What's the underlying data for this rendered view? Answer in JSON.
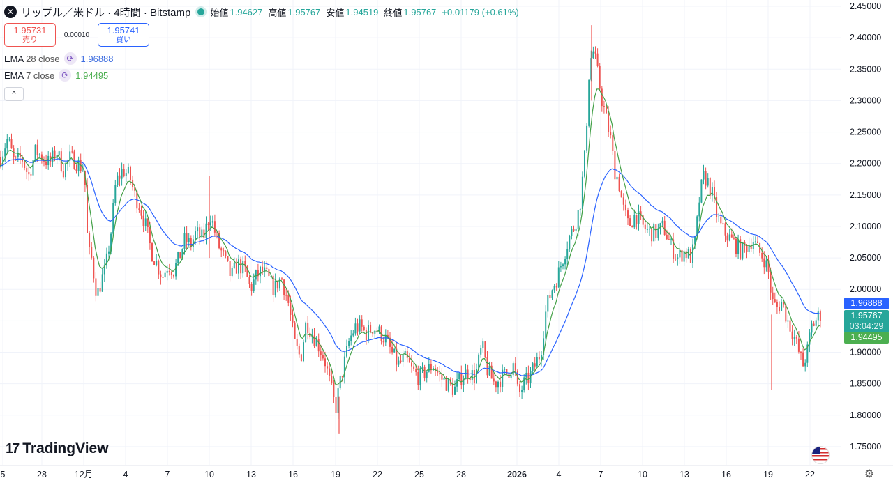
{
  "header": {
    "symbol_icon": "close-x-icon",
    "title": "リップル／米ドル · 4時間 · Bitstamp",
    "open_label": "始値",
    "open_value": "1.94627",
    "high_label": "高値",
    "high_value": "1.95767",
    "low_label": "安値",
    "low_value": "1.94519",
    "close_label": "終値",
    "close_value": "1.95767",
    "change": "+0.01179 (+0.61%)"
  },
  "trade": {
    "sell_price": "1.95731",
    "sell_label": "売り",
    "spread": "0.00010",
    "buy_price": "1.95741",
    "buy_label": "買い"
  },
  "indicators": [
    {
      "name": "EMA",
      "params": "28 close",
      "value": "1.96888",
      "color": "#2962ff",
      "value_color": "#3d6de0"
    },
    {
      "name": "EMA",
      "params": "7 close",
      "value": "1.94495",
      "color": "#43a047",
      "value_color": "#4caf50"
    }
  ],
  "price_labels": {
    "ema28": "1.96888",
    "last": "1.95767",
    "countdown": "03:04:29",
    "ema7": "1.94495"
  },
  "logo_text": "TradingView",
  "colors": {
    "up": "#26a69a",
    "down": "#ef5350",
    "grid": "#f0f3fa",
    "ema28": "#2962ff",
    "ema7": "#43a047"
  },
  "chart_data": {
    "type": "candlestick",
    "ylim": [
      1.72,
      2.46
    ],
    "yticks": [
      "2.45000",
      "2.40000",
      "2.35000",
      "2.30000",
      "2.25000",
      "2.20000",
      "2.15000",
      "2.10000",
      "2.05000",
      "2.00000",
      "1.95000",
      "1.90000",
      "1.85000",
      "1.80000",
      "1.75000"
    ],
    "xticks": [
      "5",
      "28",
      "12月",
      "4",
      "7",
      "10",
      "13",
      "16",
      "19",
      "22",
      "25",
      "28",
      "2026",
      "4",
      "7",
      "10",
      "13",
      "16",
      "19",
      "22"
    ],
    "close_path": [
      [
        0,
        2.21
      ],
      [
        10,
        2.24
      ],
      [
        20,
        2.2
      ],
      [
        30,
        2.21
      ],
      [
        40,
        2.18
      ],
      [
        50,
        2.22
      ],
      [
        60,
        2.21
      ],
      [
        70,
        2.2
      ],
      [
        80,
        2.22
      ],
      [
        90,
        2.19
      ],
      [
        100,
        2.21
      ],
      [
        110,
        2.2
      ],
      [
        120,
        2.19
      ],
      [
        125,
        2.06
      ],
      [
        130,
        2.05
      ],
      [
        138,
        1.99
      ],
      [
        146,
        2.02
      ],
      [
        150,
        2.03
      ],
      [
        158,
        2.09
      ],
      [
        165,
        2.17
      ],
      [
        175,
        2.19
      ],
      [
        185,
        2.18
      ],
      [
        192,
        2.15
      ],
      [
        200,
        2.13
      ],
      [
        208,
        2.1
      ],
      [
        216,
        2.06
      ],
      [
        224,
        2.04
      ],
      [
        232,
        2.02
      ],
      [
        240,
        2.04
      ],
      [
        248,
        2.03
      ],
      [
        256,
        2.05
      ],
      [
        264,
        2.08
      ],
      [
        272,
        2.07
      ],
      [
        280,
        2.09
      ],
      [
        290,
        2.08
      ],
      [
        300,
        2.12
      ],
      [
        305,
        2.1
      ],
      [
        312,
        2.07
      ],
      [
        320,
        2.05
      ],
      [
        330,
        2.02
      ],
      [
        340,
        2.04
      ],
      [
        350,
        2.03
      ],
      [
        358,
        2.0
      ],
      [
        366,
        2.02
      ],
      [
        374,
        2.03
      ],
      [
        382,
        2.02
      ],
      [
        392,
        2.0
      ],
      [
        402,
        2.02
      ],
      [
        412,
        1.98
      ],
      [
        422,
        1.91
      ],
      [
        430,
        1.89
      ],
      [
        438,
        1.95
      ],
      [
        446,
        1.93
      ],
      [
        456,
        1.91
      ],
      [
        464,
        1.89
      ],
      [
        472,
        1.85
      ],
      [
        480,
        1.81
      ],
      [
        486,
        1.85
      ],
      [
        492,
        1.88
      ],
      [
        500,
        1.92
      ],
      [
        508,
        1.94
      ],
      [
        516,
        1.94
      ],
      [
        524,
        1.93
      ],
      [
        534,
        1.94
      ],
      [
        544,
        1.93
      ],
      [
        552,
        1.92
      ],
      [
        560,
        1.9
      ],
      [
        570,
        1.88
      ],
      [
        580,
        1.89
      ],
      [
        590,
        1.87
      ],
      [
        600,
        1.86
      ],
      [
        610,
        1.87
      ],
      [
        620,
        1.88
      ],
      [
        630,
        1.86
      ],
      [
        640,
        1.85
      ],
      [
        650,
        1.84
      ],
      [
        660,
        1.86
      ],
      [
        670,
        1.87
      ],
      [
        680,
        1.86
      ],
      [
        690,
        1.91
      ],
      [
        698,
        1.87
      ],
      [
        708,
        1.85
      ],
      [
        718,
        1.86
      ],
      [
        728,
        1.87
      ],
      [
        736,
        1.88
      ],
      [
        742,
        1.83
      ],
      [
        750,
        1.85
      ],
      [
        758,
        1.86
      ],
      [
        766,
        1.88
      ],
      [
        774,
        1.9
      ],
      [
        782,
        1.97
      ],
      [
        790,
        2.0
      ],
      [
        798,
        2.02
      ],
      [
        806,
        2.05
      ],
      [
        814,
        2.08
      ],
      [
        822,
        2.1
      ],
      [
        830,
        2.13
      ],
      [
        838,
        2.22
      ],
      [
        844,
        2.36
      ],
      [
        850,
        2.38
      ],
      [
        856,
        2.34
      ],
      [
        862,
        2.3
      ],
      [
        868,
        2.27
      ],
      [
        874,
        2.24
      ],
      [
        880,
        2.19
      ],
      [
        886,
        2.17
      ],
      [
        892,
        2.13
      ],
      [
        900,
        2.1
      ],
      [
        910,
        2.12
      ],
      [
        920,
        2.1
      ],
      [
        930,
        2.09
      ],
      [
        940,
        2.09
      ],
      [
        950,
        2.1
      ],
      [
        960,
        2.07
      ],
      [
        970,
        2.05
      ],
      [
        980,
        2.06
      ],
      [
        990,
        2.05
      ],
      [
        996,
        2.08
      ],
      [
        1002,
        2.15
      ],
      [
        1008,
        2.18
      ],
      [
        1014,
        2.17
      ],
      [
        1020,
        2.15
      ],
      [
        1026,
        2.12
      ],
      [
        1032,
        2.1
      ],
      [
        1038,
        2.09
      ],
      [
        1046,
        2.08
      ],
      [
        1054,
        2.07
      ],
      [
        1062,
        2.06
      ],
      [
        1070,
        2.07
      ],
      [
        1078,
        2.08
      ],
      [
        1086,
        2.06
      ],
      [
        1094,
        2.05
      ],
      [
        1100,
        2.03
      ],
      [
        1106,
        1.98
      ],
      [
        1112,
        1.97
      ],
      [
        1120,
        1.98
      ],
      [
        1128,
        1.95
      ],
      [
        1136,
        1.93
      ],
      [
        1144,
        1.9
      ],
      [
        1150,
        1.88
      ],
      [
        1156,
        1.9
      ],
      [
        1162,
        1.94
      ],
      [
        1168,
        1.95
      ],
      [
        1174,
        1.96
      ]
    ],
    "spikes": [
      {
        "x": 1106,
        "low": 1.84,
        "high": 1.96
      },
      {
        "x": 486,
        "low": 1.77,
        "high": 1.83
      },
      {
        "x": 300,
        "low": 2.05,
        "high": 2.18
      },
      {
        "x": 848,
        "low": 2.3,
        "high": 2.42
      }
    ]
  }
}
